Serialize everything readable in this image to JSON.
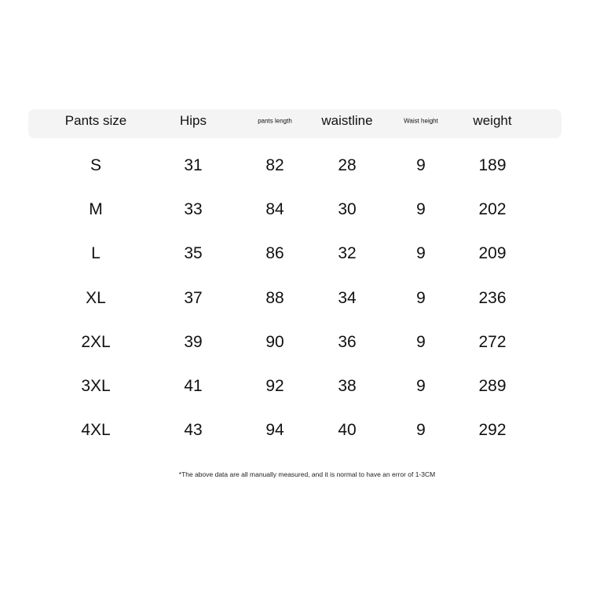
{
  "table": {
    "headers": [
      "Pants size",
      "Hips",
      "pants length",
      "waistline",
      "Waist height",
      "weight"
    ],
    "rows": [
      [
        "S",
        "31",
        "82",
        "28",
        "9",
        "189"
      ],
      [
        "M",
        "33",
        "84",
        "30",
        "9",
        "202"
      ],
      [
        "L",
        "35",
        "86",
        "32",
        "9",
        "209"
      ],
      [
        "XL",
        "37",
        "88",
        "34",
        "9",
        "236"
      ],
      [
        "2XL",
        "39",
        "90",
        "36",
        "9",
        "272"
      ],
      [
        "3XL",
        "41",
        "92",
        "38",
        "9",
        "289"
      ],
      [
        "4XL",
        "43",
        "94",
        "40",
        "9",
        "292"
      ]
    ]
  },
  "footnote": "*The above data are all manually measured, and it is normal to have an error of 1-3CM",
  "colors": {
    "header_bg": "#f4f4f4",
    "text": "#111111"
  }
}
